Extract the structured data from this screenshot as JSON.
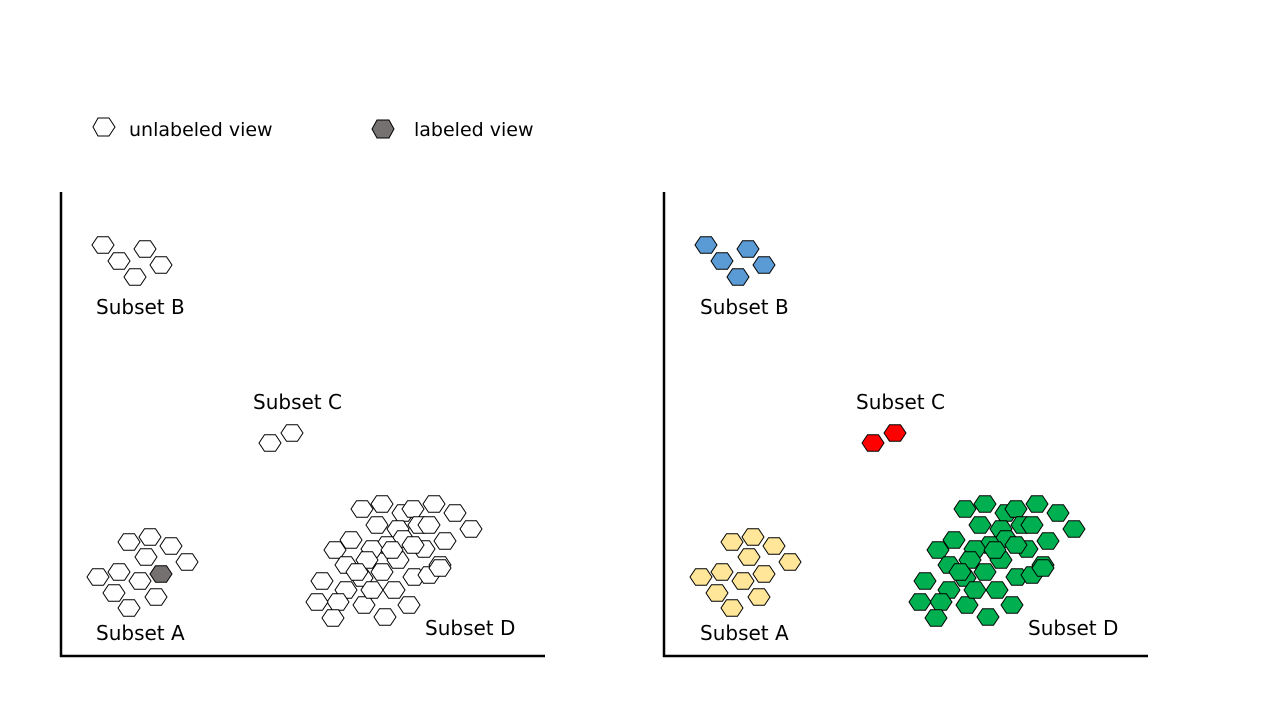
{
  "legend": {
    "unlabeled": {
      "label": "unlabeled view",
      "fill": "#ffffff"
    },
    "labeled": {
      "label": "labeled view",
      "fill": "#767171"
    }
  },
  "colors": {
    "outline": "#000000",
    "unlabeled": "#ffffff",
    "labeled": "#767171",
    "subset_a": "#ffe699",
    "subset_b": "#5b9bd5",
    "subset_c": "#ff0000",
    "subset_d": "#00b050"
  },
  "panels": {
    "left": {
      "subset_a": {
        "label": "Subset A"
      },
      "subset_b": {
        "label": "Subset B"
      },
      "subset_c": {
        "label": "Subset C"
      },
      "subset_d": {
        "label": "Subset D"
      }
    },
    "right": {
      "subset_a": {
        "label": "Subset A"
      },
      "subset_b": {
        "label": "Subset B"
      },
      "subset_c": {
        "label": "Subset C"
      },
      "subset_d": {
        "label": "Subset D"
      }
    }
  }
}
